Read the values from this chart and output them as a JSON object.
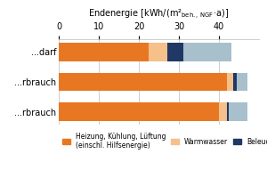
{
  "ylabels": [
    "...darf",
    "...rbrauch",
    "...rbrauch"
  ],
  "xlim": [
    0,
    50
  ],
  "xticks": [
    0,
    10,
    20,
    30,
    40
  ],
  "bars": [
    {
      "heizung": 22.5,
      "warmwasser": 4.5,
      "beleuchtung": 4.0,
      "rest": 12.0
    },
    {
      "heizung": 42.0,
      "warmwasser": 1.5,
      "beleuchtung": 1.0,
      "rest": 2.5
    },
    {
      "heizung": 40.0,
      "warmwasser": 2.0,
      "beleuchtung": 0.5,
      "rest": 4.5
    }
  ],
  "colors": {
    "heizung": "#E87722",
    "warmwasser": "#F5C08A",
    "beleuchtung": "#1F3864",
    "rest": "#A8BFCC"
  },
  "legend_labels": {
    "heizung": "Heizung, Kühlung, Lüftung\n(einschl. Hilfsenergie)",
    "warmwasser": "Warmwasser",
    "beleuchtung": "Beleuchtung"
  },
  "xlabel": "Endenergie [kWh/(m²beh. NGF ·a)]",
  "background_color": "#FFFFFF",
  "grid_color": "#BBBBBB"
}
